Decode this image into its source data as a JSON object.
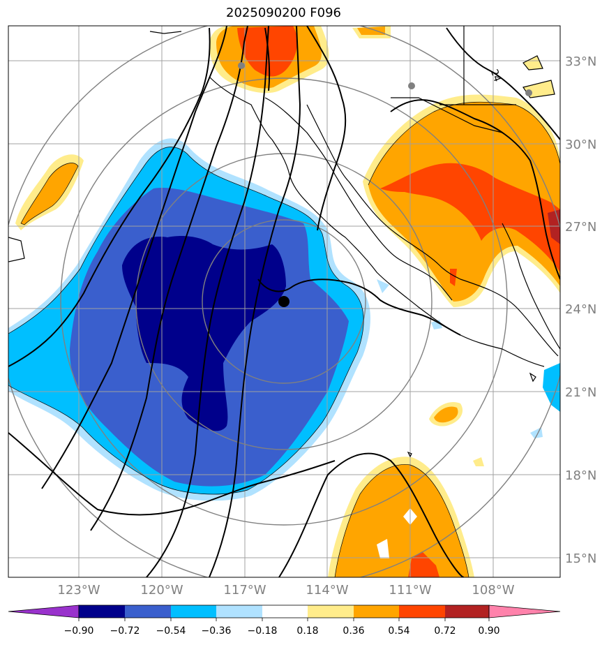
{
  "title": "2025090200 F096",
  "map": {
    "lat_labels": [
      "33°N",
      "30°N",
      "27°N",
      "24°N",
      "21°N",
      "18°N",
      "15°N"
    ],
    "lon_labels": [
      "123°W",
      "120°W",
      "117°W",
      "114°W",
      "111°W",
      "108°W"
    ],
    "contour_label": "24",
    "storm_center": {
      "lat": 24.2,
      "lon": -115.3
    }
  },
  "colorbar": {
    "labels": [
      "−0.90",
      "−0.72",
      "−0.54",
      "−0.36",
      "−0.18",
      "0.18",
      "0.36",
      "0.54",
      "0.72",
      "0.90"
    ],
    "colors": [
      "#9932cc",
      "#00008b",
      "#3a5fcd",
      "#00bfff",
      "#b0e2ff",
      "#ffffff",
      "#ffec8b",
      "#ffa500",
      "#ff4500",
      "#b22222",
      "#ff82ab"
    ]
  },
  "colors": {
    "grid": "#a0a0a0",
    "range_rings": "#808080",
    "coast": "#000000"
  }
}
